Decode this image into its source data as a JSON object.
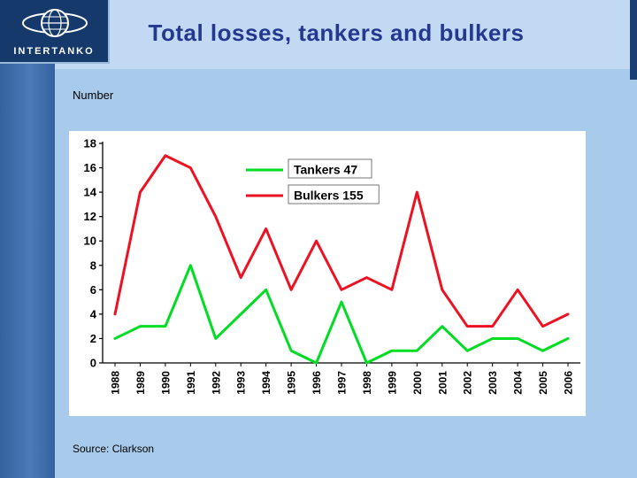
{
  "slide": {
    "title": "Total losses, tankers and bulkers",
    "logo_text": "INTERTANKO",
    "axis_unit_label": "Number",
    "source": "Source: Clarkson"
  },
  "colors": {
    "header_bg": "#c2d9f4",
    "body_bg": "#a8cbec",
    "left_strip": "#4a7ab8",
    "logo_bg": "#16396b",
    "title_text": "#24388f",
    "tankers_line": "#00dd22",
    "bulkers_line": "#ee1122"
  },
  "chart_data": {
    "type": "line",
    "x": [
      1988,
      1989,
      1990,
      1991,
      1992,
      1993,
      1994,
      1995,
      1996,
      1997,
      1998,
      1999,
      2000,
      2001,
      2002,
      2003,
      2004,
      2005,
      2006
    ],
    "series": [
      {
        "name": "Tankers 47",
        "color": "#00dd22",
        "values": [
          2,
          3,
          3,
          8,
          2,
          4,
          6,
          1,
          0,
          5,
          0,
          1,
          1,
          3,
          1,
          2,
          2,
          1,
          2
        ]
      },
      {
        "name": "Bulkers 155",
        "color": "#ee1122",
        "values": [
          4,
          14,
          17,
          16,
          12,
          7,
          11,
          6,
          10,
          6,
          7,
          6,
          14,
          6,
          3,
          3,
          6,
          3,
          4
        ]
      }
    ],
    "ylabel": "Number",
    "xlabel": "",
    "ylim": [
      0,
      18
    ],
    "ytick_step": 2,
    "grid": false,
    "legend_position": "top-center"
  }
}
